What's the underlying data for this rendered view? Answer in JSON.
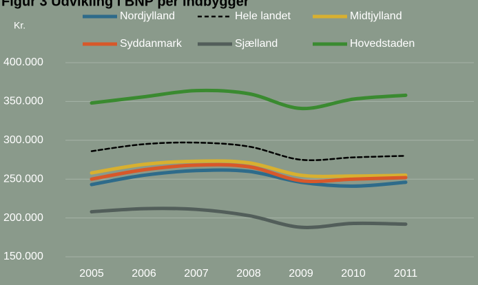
{
  "chart_data": {
    "type": "line",
    "title": "Figur 3 Udvikling i BNP per indbygger",
    "y_label": "Kr.",
    "categories": [
      "2005",
      "2006",
      "2007",
      "2008",
      "2009",
      "2010",
      "2011"
    ],
    "series": [
      {
        "name": "Nordjylland",
        "color": "#2e6b8a",
        "style": "solid",
        "values": [
          243000,
          255000,
          261000,
          260000,
          246000,
          241000,
          246000
        ]
      },
      {
        "name": "Hele landet",
        "color": "#000000",
        "style": "dashed",
        "values": [
          286000,
          295000,
          297000,
          292000,
          275000,
          278000,
          280000
        ]
      },
      {
        "name": "Midtjylland",
        "color": "#d8b030",
        "style": "solid",
        "values": [
          258000,
          269000,
          273000,
          271000,
          255000,
          254000,
          255000
        ]
      },
      {
        "name": "Syddanmark",
        "color": "#d8582a",
        "style": "solid",
        "values": [
          250000,
          262000,
          268000,
          266000,
          248000,
          250000,
          252000
        ]
      },
      {
        "name": "Sjælland",
        "color": "#525e5a",
        "style": "solid",
        "values": [
          208000,
          212000,
          211000,
          203000,
          188000,
          193000,
          192000
        ]
      },
      {
        "name": "Hovedstaden",
        "color": "#3a8a30",
        "style": "solid",
        "values": [
          348000,
          356000,
          364000,
          360000,
          341000,
          353000,
          358000
        ]
      }
    ],
    "ylim": [
      150000,
      400000
    ],
    "yticks": [
      {
        "value": 150000,
        "label": "150.000"
      },
      {
        "value": 200000,
        "label": "200.000"
      },
      {
        "value": 250000,
        "label": "250.000"
      },
      {
        "value": 300000,
        "label": "300.000"
      },
      {
        "value": 350000,
        "label": "350.000"
      },
      {
        "value": 400000,
        "label": "400.000"
      }
    ],
    "grid": true,
    "legend": "top"
  }
}
